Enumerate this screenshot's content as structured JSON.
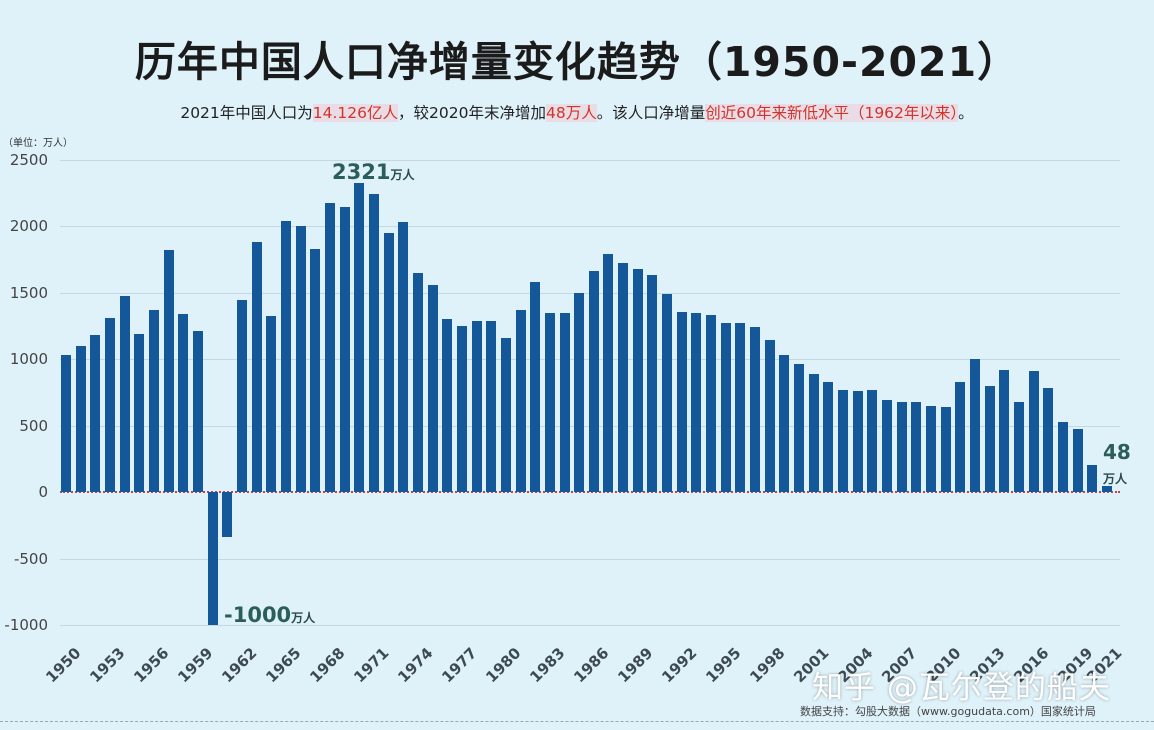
{
  "header": {
    "title": "历年中国人口净增量变化趋势（1950-2021）",
    "subtitle_parts": [
      {
        "text": "2021年中国人口为",
        "highlight": false
      },
      {
        "text": "14.126亿人",
        "highlight": true
      },
      {
        "text": "，较2020年末净增加",
        "highlight": false
      },
      {
        "text": "48万人",
        "highlight": true
      },
      {
        "text": "。该人口净增量",
        "highlight": false
      },
      {
        "text": "创近60年来新低水平（1962年以来）",
        "highlight": true
      },
      {
        "text": "。",
        "highlight": false
      }
    ],
    "unit_label": "（单位：万人）"
  },
  "footer": {
    "source": "数据支持：勾股大数据（www.gogudata.com）国家统计局",
    "watermark": "知乎 @瓦尔登的船夫"
  },
  "colors": {
    "bar": "#15589a",
    "background": "#dff2fa",
    "highlight_text": "#d2342b",
    "annotation": "#2b5e5a"
  },
  "annotations": [
    {
      "year": 1970,
      "value_text": "2321",
      "unit": "万人"
    },
    {
      "year": 1960,
      "value_text": "-1000",
      "unit": "万人"
    },
    {
      "year": 2021,
      "value_text": "48",
      "unit": "万人"
    }
  ],
  "chart_data": {
    "type": "bar",
    "title": "历年中国人口净增量变化趋势（1950-2021）",
    "subtitle": "2021年中国人口为14.126亿人，较2020年末净增加48万人。该人口净增量创近60年来新低水平（1962年以来）。",
    "xlabel": "",
    "ylabel": "单位：万人",
    "ylim": [
      -1000,
      2500
    ],
    "yticks": [
      2500,
      2000,
      1500,
      1000,
      500,
      0,
      -500,
      -1000
    ],
    "xtick_labels": [
      "1950",
      "1953",
      "1956",
      "1959",
      "1962",
      "1965",
      "1968",
      "1971",
      "1974",
      "1977",
      "1980",
      "1983",
      "1986",
      "1989",
      "1992",
      "1995",
      "1998",
      "2001",
      "2004",
      "2007",
      "2010",
      "2013",
      "2016",
      "2019",
      "2021"
    ],
    "grid": true,
    "legend": null,
    "categories": [
      1950,
      1951,
      1952,
      1953,
      1954,
      1955,
      1956,
      1957,
      1958,
      1959,
      1960,
      1961,
      1962,
      1963,
      1964,
      1965,
      1966,
      1967,
      1968,
      1969,
      1970,
      1971,
      1972,
      1973,
      1974,
      1975,
      1976,
      1977,
      1978,
      1979,
      1980,
      1981,
      1982,
      1983,
      1984,
      1985,
      1986,
      1987,
      1988,
      1989,
      1990,
      1991,
      1992,
      1993,
      1994,
      1995,
      1996,
      1997,
      1998,
      1999,
      2000,
      2001,
      2002,
      2003,
      2004,
      2005,
      2006,
      2007,
      2008,
      2009,
      2010,
      2011,
      2012,
      2013,
      2014,
      2015,
      2016,
      2017,
      2018,
      2019,
      2020,
      2021
    ],
    "values": [
      1030,
      1100,
      1180,
      1310,
      1470,
      1190,
      1370,
      1820,
      1340,
      1210,
      -1000,
      -340,
      1440,
      1880,
      1320,
      2040,
      2000,
      1830,
      2170,
      2140,
      2321,
      2240,
      1950,
      2030,
      1650,
      1560,
      1300,
      1250,
      1285,
      1285,
      1160,
      1370,
      1580,
      1345,
      1345,
      1500,
      1660,
      1790,
      1720,
      1680,
      1630,
      1490,
      1350,
      1345,
      1330,
      1270,
      1270,
      1240,
      1140,
      1030,
      960,
      885,
      825,
      770,
      760,
      770,
      690,
      680,
      675,
      650,
      640,
      830,
      1000,
      800,
      920,
      680,
      910,
      780,
      530,
      470,
      204,
      48
    ],
    "annotations": [
      {
        "x": 1970,
        "text": "2321万人"
      },
      {
        "x": 1960,
        "text": "-1000万人"
      },
      {
        "x": 2021,
        "text": "48万人"
      }
    ]
  }
}
